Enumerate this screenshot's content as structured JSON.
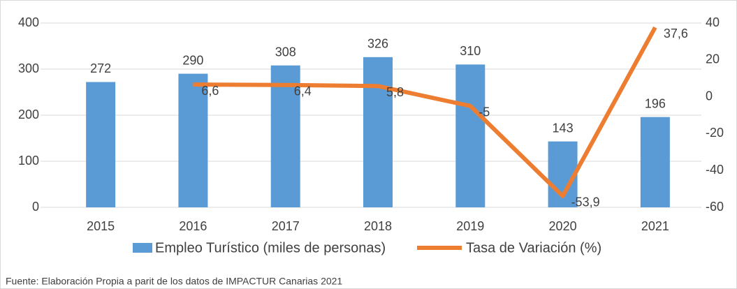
{
  "chart_data": {
    "type": "bar_line",
    "categories": [
      "2015",
      "2016",
      "2017",
      "2018",
      "2019",
      "2020",
      "2021"
    ],
    "series": [
      {
        "name": "Empleo Turístico (miles de personas)",
        "type": "bar",
        "color": "#5b9bd5",
        "values": [
          272,
          290,
          308,
          326,
          310,
          143,
          196
        ]
      },
      {
        "name": "Tasa de Variación (%)",
        "type": "line",
        "axis": "y2",
        "color": "#ed7d31",
        "values": [
          null,
          6.6,
          6.4,
          5.8,
          -5,
          -53.9,
          37.6
        ],
        "value_labels": [
          null,
          "6,6",
          "6,4",
          "5,8",
          "-5",
          "-53,9",
          "37,6"
        ]
      }
    ],
    "ylim": [
      0,
      400
    ],
    "yticks": [
      0,
      100,
      200,
      300,
      400
    ],
    "y2lim": [
      -60,
      40
    ],
    "y2ticks": [
      -60,
      -40,
      -20,
      0,
      20,
      40
    ],
    "grid": true,
    "legend": "bottom",
    "source": "Fuente: Elaboración Propia a parit de los datos de IMPACTUR Canarias 2021"
  }
}
